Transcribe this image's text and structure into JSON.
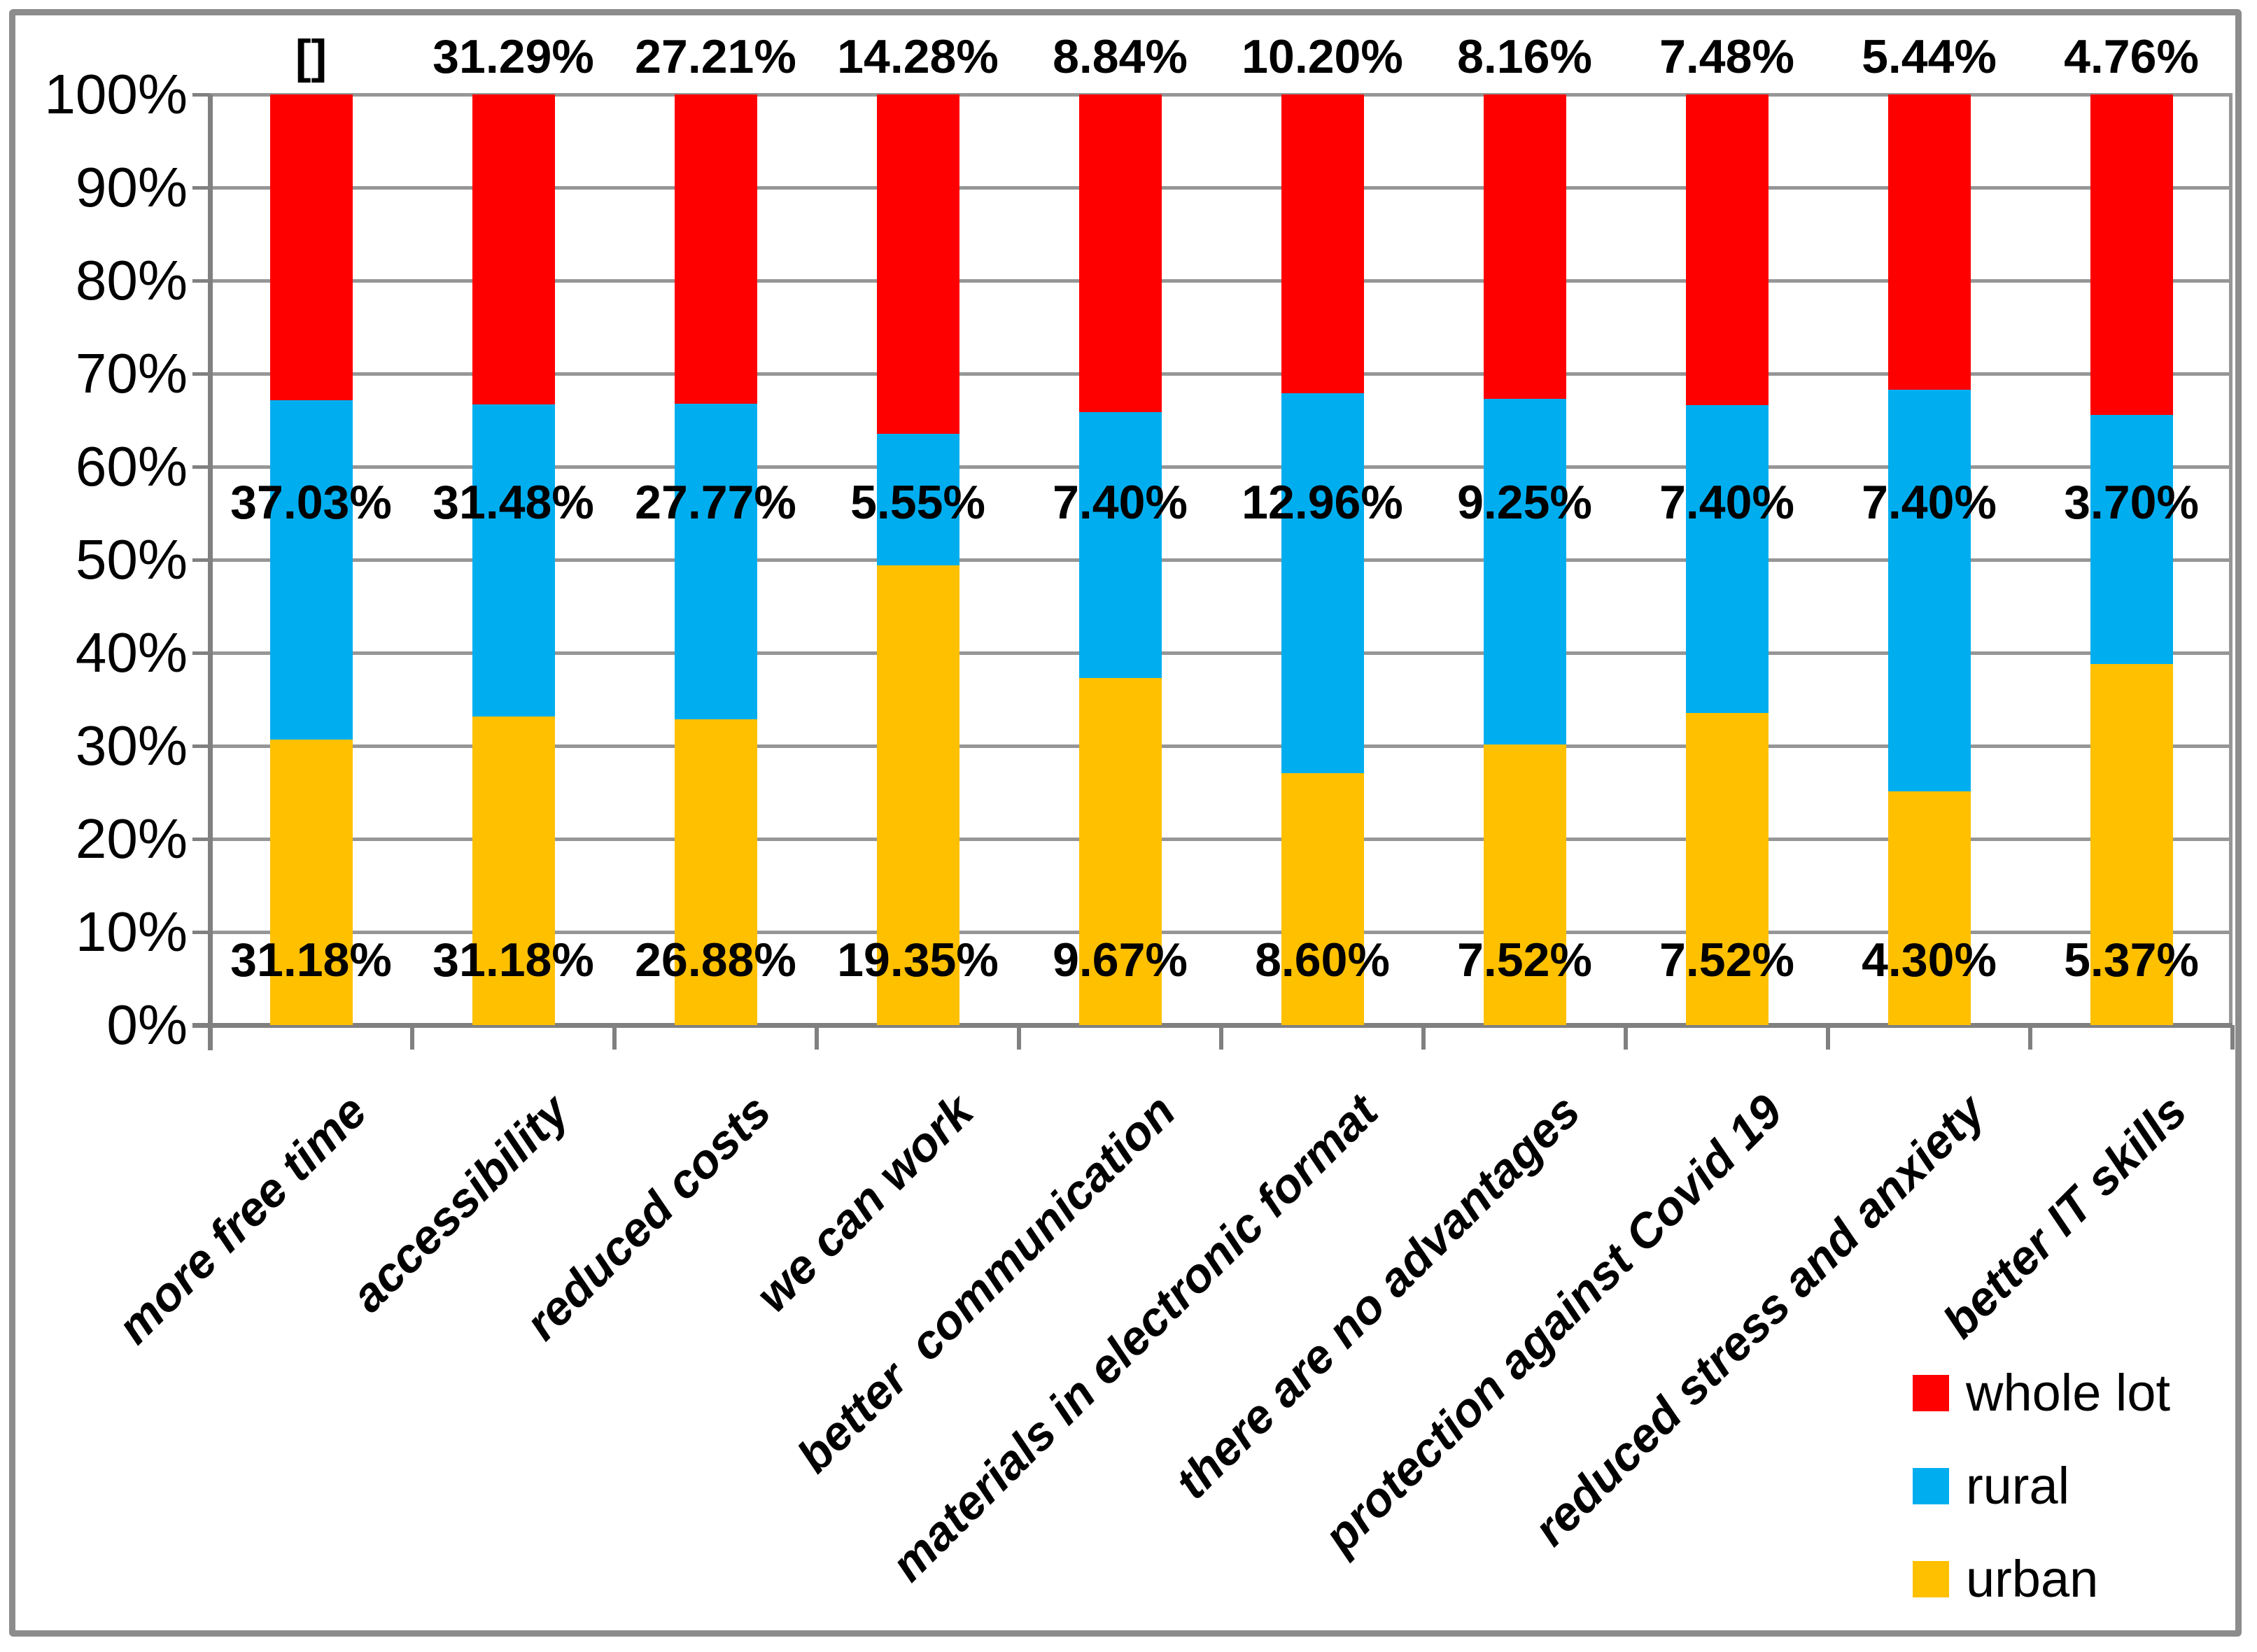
{
  "chart_data": {
    "type": "bar",
    "subtype": "100-percent-stacked-column",
    "title": "",
    "xlabel": "",
    "ylabel": "",
    "categories": [
      "more free time",
      "accessibility",
      "reduced costs",
      "we can work",
      "better  communication",
      "materials in electronic format",
      "there are no advantages",
      "protection against Covid 19",
      "reduced stress and anxiety",
      "better IT skills"
    ],
    "series": [
      {
        "name": "urban",
        "color": "#FFC000",
        "values": [
          31.18,
          31.18,
          26.88,
          19.35,
          9.67,
          8.6,
          7.52,
          7.52,
          4.3,
          5.37
        ],
        "labels": [
          "31.18%",
          "31.18%",
          "26.88%",
          "19.35%",
          "9.67%",
          "8.60%",
          "7.52%",
          "7.52%",
          "4.30%",
          "5.37%"
        ]
      },
      {
        "name": "rural",
        "color": "#00AEEF",
        "values": [
          37.03,
          31.48,
          27.77,
          5.55,
          7.4,
          12.96,
          9.25,
          7.4,
          7.4,
          3.7
        ],
        "labels": [
          "37.03%",
          "31.48%",
          "27.77%",
          "5.55%",
          "7.40%",
          "12.96%",
          "9.25%",
          "7.40%",
          "7.40%",
          "3.70%"
        ]
      },
      {
        "name": "whole lot",
        "color": "#FF0000",
        "values": [
          33.33,
          31.29,
          27.21,
          14.28,
          8.84,
          10.2,
          8.16,
          7.48,
          5.44,
          4.76
        ],
        "labels": [
          "[]",
          "31.29%",
          "27.21%",
          "14.28%",
          "8.84%",
          "10.20%",
          "8.16%",
          "7.48%",
          "5.44%",
          "4.76%"
        ]
      }
    ],
    "stack_order_bottom_to_top": [
      "urban",
      "rural",
      "whole lot"
    ],
    "y_axis": {
      "ticks": [
        "0%",
        "10%",
        "20%",
        "30%",
        "40%",
        "50%",
        "60%",
        "70%",
        "80%",
        "90%",
        "100%"
      ],
      "min": 0,
      "max": 100,
      "grid": true
    },
    "legend_position": "bottom-right",
    "note_first_whole_lot_label": "[]"
  },
  "legend": {
    "items": [
      {
        "label": "whole lot",
        "color": "#FF0000"
      },
      {
        "label": "rural",
        "color": "#00AEEF"
      },
      {
        "label": "urban",
        "color": "#FFC000"
      }
    ]
  },
  "colors": {
    "grid": "#969696",
    "axis": "#808080",
    "frame": "#8C8C8C",
    "background": "#FFFFFF",
    "text": "#000000"
  }
}
